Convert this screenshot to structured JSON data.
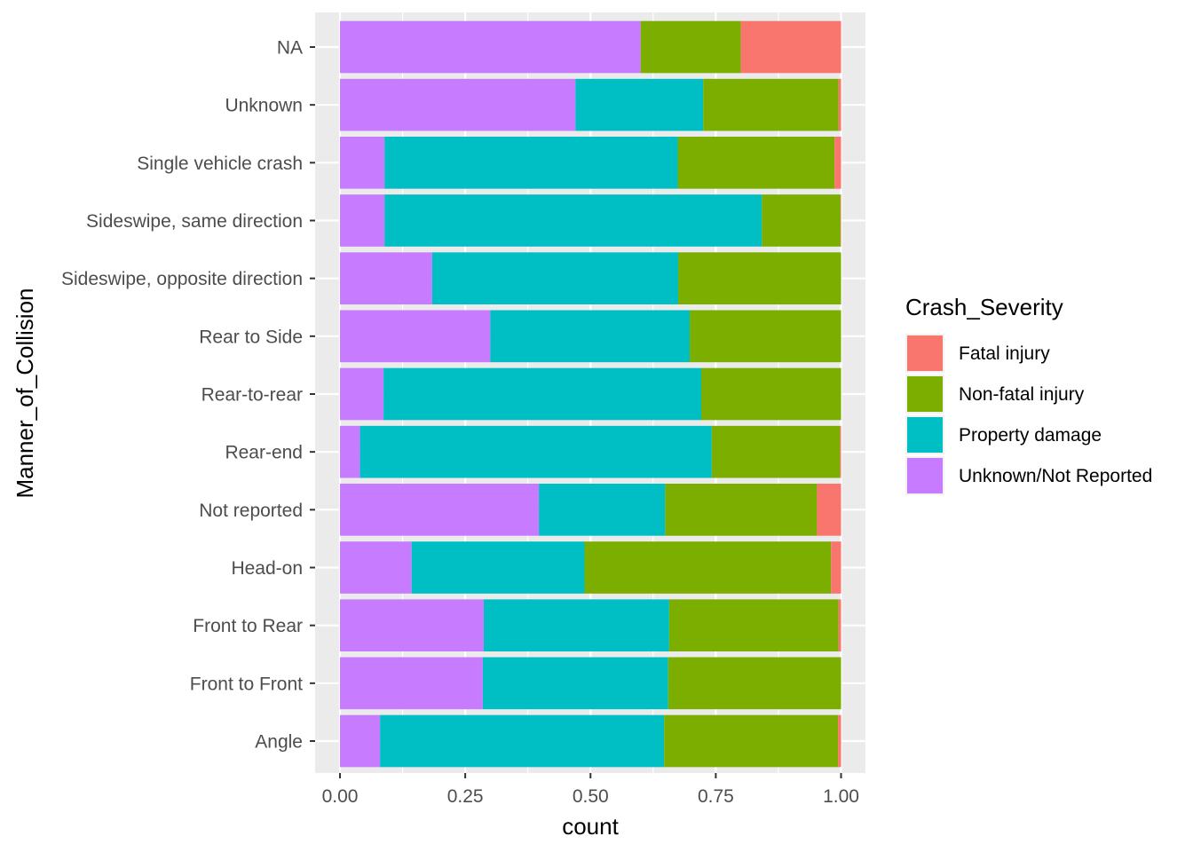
{
  "chart_data": {
    "type": "bar",
    "orientation": "horizontal",
    "stacked": "fill",
    "xlabel": "count",
    "ylabel": "Manner_of_Collision",
    "xlim": [
      0,
      1
    ],
    "x_ticks": [
      "0.00",
      "0.25",
      "0.50",
      "0.75",
      "1.00"
    ],
    "grid": true,
    "legend_position": "right",
    "categories": [
      "Angle",
      "Front to Front",
      "Front to Rear",
      "Head-on",
      "Not reported",
      "Rear-end",
      "Rear-to-rear",
      "Rear to Side",
      "Sideswipe, opposite direction",
      "Sideswipe, same direction",
      "Single vehicle crash",
      "Unknown",
      "NA"
    ],
    "series": [
      {
        "name": "Unknown/Not Reported",
        "color": "#C77CFF",
        "values": [
          0.08,
          0.285,
          0.287,
          0.143,
          0.397,
          0.04,
          0.087,
          0.3,
          0.184,
          0.089,
          0.089,
          0.47,
          0.6
        ]
      },
      {
        "name": "Property damage",
        "color": "#00BFC4",
        "values": [
          0.567,
          0.37,
          0.37,
          0.345,
          0.252,
          0.702,
          0.634,
          0.398,
          0.491,
          0.753,
          0.585,
          0.255,
          0.0
        ]
      },
      {
        "name": "Non-fatal injury",
        "color": "#7CAE00",
        "values": [
          0.347,
          0.345,
          0.338,
          0.492,
          0.303,
          0.256,
          0.279,
          0.302,
          0.325,
          0.157,
          0.313,
          0.27,
          0.2
        ]
      },
      {
        "name": "Fatal injury",
        "color": "#F8766D",
        "values": [
          0.006,
          0.0,
          0.005,
          0.02,
          0.048,
          0.002,
          0.0,
          0.0,
          0.0,
          0.001,
          0.013,
          0.005,
          0.2
        ]
      }
    ],
    "legend": {
      "title": "Crash_Severity",
      "items": [
        {
          "label": "Fatal injury",
          "color": "#F8766D"
        },
        {
          "label": "Non-fatal injury",
          "color": "#7CAE00"
        },
        {
          "label": "Property damage",
          "color": "#00BFC4"
        },
        {
          "label": "Unknown/Not Reported",
          "color": "#C77CFF"
        }
      ]
    },
    "colors": {
      "panel_bg": "#EBEBEB",
      "grid": "#FFFFFF",
      "tick_text": "#4D4D4D"
    }
  }
}
